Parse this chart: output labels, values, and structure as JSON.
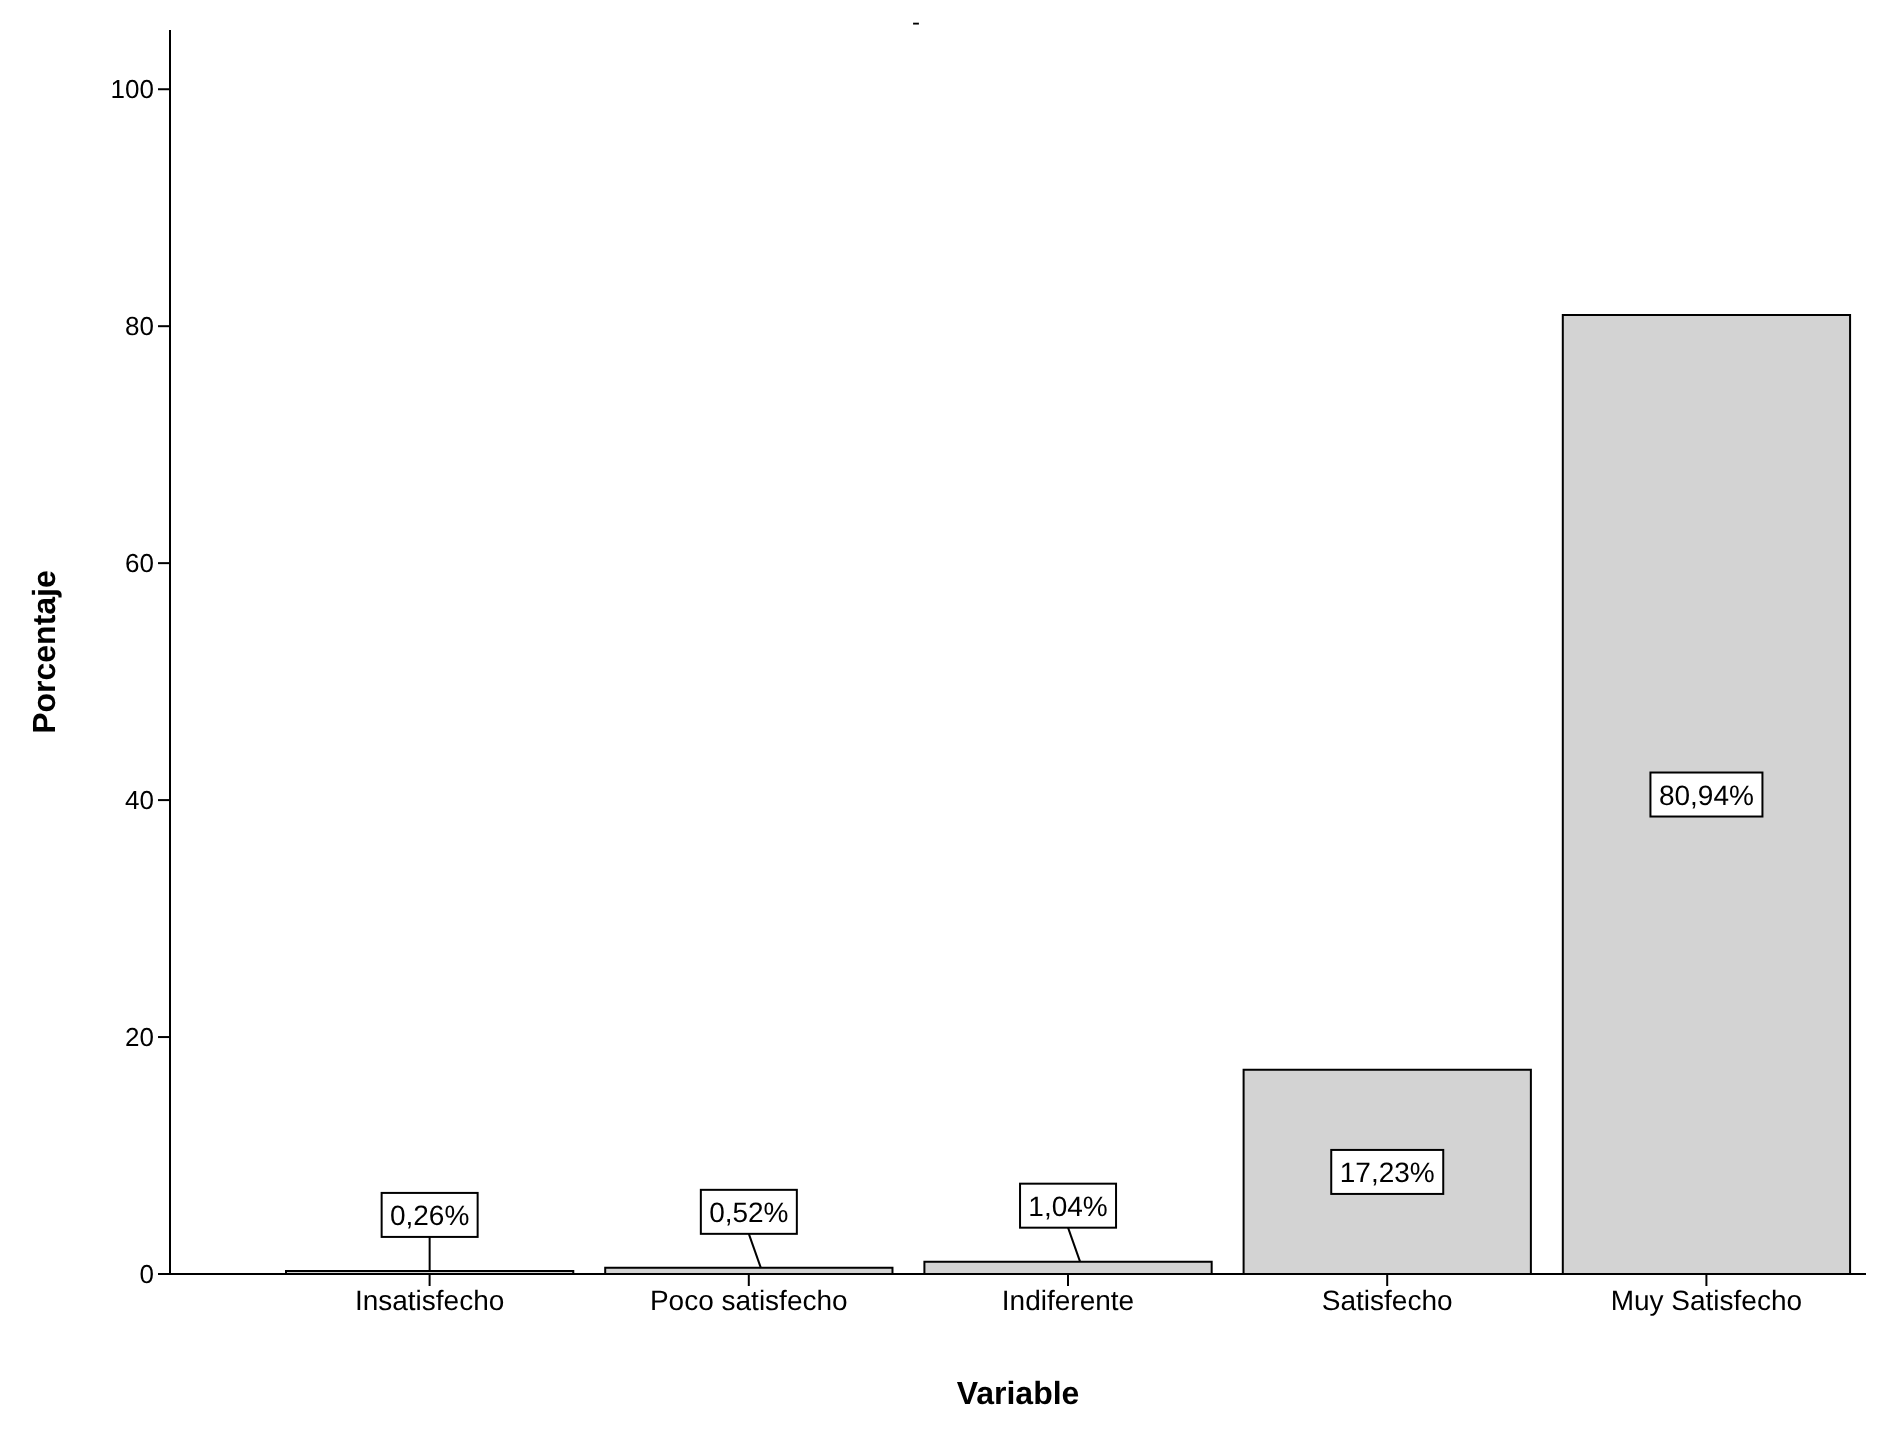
{
  "chart_data": {
    "type": "bar",
    "title": "-",
    "xlabel": "Variable",
    "ylabel": "Porcentaje",
    "categories": [
      "Insatisfecho",
      "Poco satisfecho",
      "Indiferente",
      "Satisfecho",
      "Muy Satisfecho"
    ],
    "values": [
      0.26,
      0.52,
      1.04,
      17.23,
      80.94
    ],
    "value_labels": [
      "0,26%",
      "0,52%",
      "1,04%",
      "17,23%",
      "80,94%"
    ],
    "color": "#d3d3d3",
    "ylim": [
      0,
      105
    ],
    "yticks": [
      0,
      20,
      40,
      60,
      80,
      100
    ],
    "grid": false
  }
}
